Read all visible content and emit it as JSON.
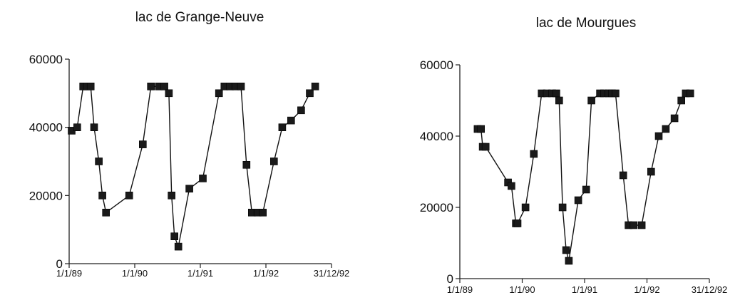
{
  "chart_data": [
    {
      "type": "line",
      "title": "lac de Grange-Neuve",
      "xlabel": "",
      "ylabel": "",
      "ylim": [
        0,
        60000
      ],
      "yticks": [
        "0",
        "20000",
        "40000",
        "60000"
      ],
      "xticks": [
        "1/1/89",
        "1/1/90",
        "1/1/91",
        "1/1/92",
        "31/12/92"
      ],
      "grid": false,
      "series": [
        {
          "x": [
            "1989-01-15",
            "1989-02-15",
            "1989-03-20",
            "1989-04-10",
            "1989-05-01",
            "1989-05-20",
            "1989-06-15",
            "1989-07-05",
            "1989-07-25",
            "1989-12-01",
            "1990-02-15",
            "1990-04-01",
            "1990-05-15",
            "1990-06-15",
            "1990-07-10",
            "1990-07-25",
            "1990-08-10",
            "1990-09-01",
            "1990-11-01",
            "1991-01-15",
            "1991-04-15",
            "1991-05-15",
            "1991-06-15",
            "1991-07-15",
            "1991-08-15",
            "1991-09-15",
            "1991-10-15",
            "1991-11-15",
            "1991-12-15",
            "1992-02-15",
            "1992-04-01",
            "1992-05-20",
            "1992-07-15",
            "1992-09-01",
            "1992-10-01"
          ],
          "values": [
            39000,
            40000,
            52000,
            52000,
            52000,
            40000,
            30000,
            20000,
            15000,
            20000,
            35000,
            52000,
            52000,
            52000,
            50000,
            20000,
            8000,
            5000,
            22000,
            25000,
            50000,
            52000,
            52000,
            52000,
            52000,
            29000,
            15000,
            15000,
            15000,
            30000,
            40000,
            42000,
            45000,
            50000,
            52000
          ]
        }
      ]
    },
    {
      "type": "line",
      "title": "lac de Mourgues",
      "xlabel": "",
      "ylabel": "",
      "ylim": [
        0,
        60000
      ],
      "yticks": [
        "0",
        "20000",
        "40000",
        "60000"
      ],
      "xticks": [
        "1/1/89",
        "1/1/90",
        "1/1/91",
        "1/1/92",
        "31/12/92"
      ],
      "grid": false,
      "series": [
        {
          "x": [
            "1989-04-15",
            "1989-05-05",
            "1989-05-15",
            "1989-06-01",
            "1989-10-10",
            "1989-10-30",
            "1989-11-25",
            "1989-12-05",
            "1990-01-20",
            "1990-03-10",
            "1990-04-25",
            "1990-05-25",
            "1990-06-25",
            "1990-07-20",
            "1990-08-05",
            "1990-08-25",
            "1990-09-15",
            "1990-10-01",
            "1990-11-25",
            "1991-01-10",
            "1991-02-10",
            "1991-04-01",
            "1991-04-25",
            "1991-05-20",
            "1991-06-10",
            "1991-07-01",
            "1991-08-15",
            "1991-09-15",
            "1991-10-15",
            "1991-12-01",
            "1992-01-25",
            "1992-03-10",
            "1992-04-20",
            "1992-06-10",
            "1992-07-20",
            "1992-08-15",
            "1992-09-10"
          ],
          "values": [
            42000,
            42000,
            37000,
            37000,
            27000,
            26000,
            15500,
            15500,
            20000,
            35000,
            52000,
            52000,
            52000,
            52000,
            50000,
            20000,
            8000,
            5000,
            22000,
            25000,
            50000,
            52000,
            52000,
            52000,
            52000,
            52000,
            29000,
            15000,
            15000,
            15000,
            30000,
            40000,
            42000,
            45000,
            50000,
            52000,
            52000
          ]
        }
      ]
    }
  ]
}
